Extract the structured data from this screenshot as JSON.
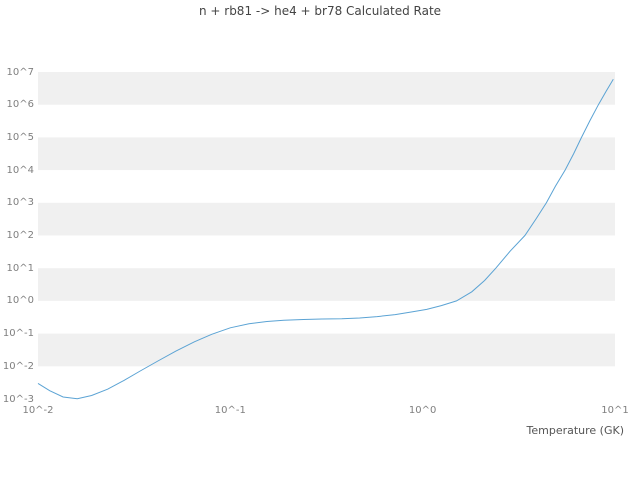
{
  "chart_data": {
    "type": "line",
    "title": "n + rb81 -> he4 + br78 Calculated Rate",
    "xlabel": "Temperature (GK)",
    "ylabel": "",
    "x_scale": "log",
    "y_scale": "log",
    "xlim": [
      0.01,
      10
    ],
    "ylim": [
      0.001,
      10000000
    ],
    "x_ticks": [
      "10^-2",
      "10^-1",
      "10^0",
      "10^1"
    ],
    "x_tick_values": [
      0.01,
      0.1,
      1,
      10
    ],
    "y_ticks": [
      "10^7",
      "10^6",
      "10^5",
      "10^4",
      "10^3",
      "10^2",
      "10^1",
      "10^0",
      "10^-1",
      "10^-2",
      "10^-3"
    ],
    "y_tick_values": [
      10000000,
      1000000,
      100000,
      10000,
      1000,
      100,
      10,
      1,
      0.1,
      0.01,
      0.001
    ],
    "grid": "alternating-horizontal-bands",
    "legend": "none",
    "line_color": "#5ba3d4",
    "band_color": "#f0f0f0",
    "series": [
      {
        "name": "calculated-rate",
        "x": [
          0.01,
          0.0115,
          0.0135,
          0.016,
          0.019,
          0.023,
          0.028,
          0.034,
          0.042,
          0.052,
          0.065,
          0.08,
          0.1,
          0.125,
          0.155,
          0.19,
          0.24,
          0.3,
          0.38,
          0.47,
          0.58,
          0.72,
          0.88,
          1.05,
          1.25,
          1.5,
          1.8,
          2.1,
          2.4,
          2.85,
          3.4,
          3.9,
          4.4,
          4.9,
          5.5,
          6.1,
          6.7,
          7.4,
          8.2,
          9.0,
          9.8
        ],
        "y": [
          0.003,
          0.0018,
          0.00115,
          0.00102,
          0.00128,
          0.002,
          0.0037,
          0.0072,
          0.0145,
          0.029,
          0.056,
          0.095,
          0.15,
          0.2,
          0.235,
          0.255,
          0.27,
          0.28,
          0.285,
          0.3,
          0.33,
          0.38,
          0.46,
          0.55,
          0.72,
          1.0,
          1.9,
          4.2,
          10,
          33,
          100,
          330,
          1000,
          3200,
          10000,
          32000,
          100000,
          320000,
          1000000,
          2600000,
          6000000
        ]
      }
    ]
  }
}
